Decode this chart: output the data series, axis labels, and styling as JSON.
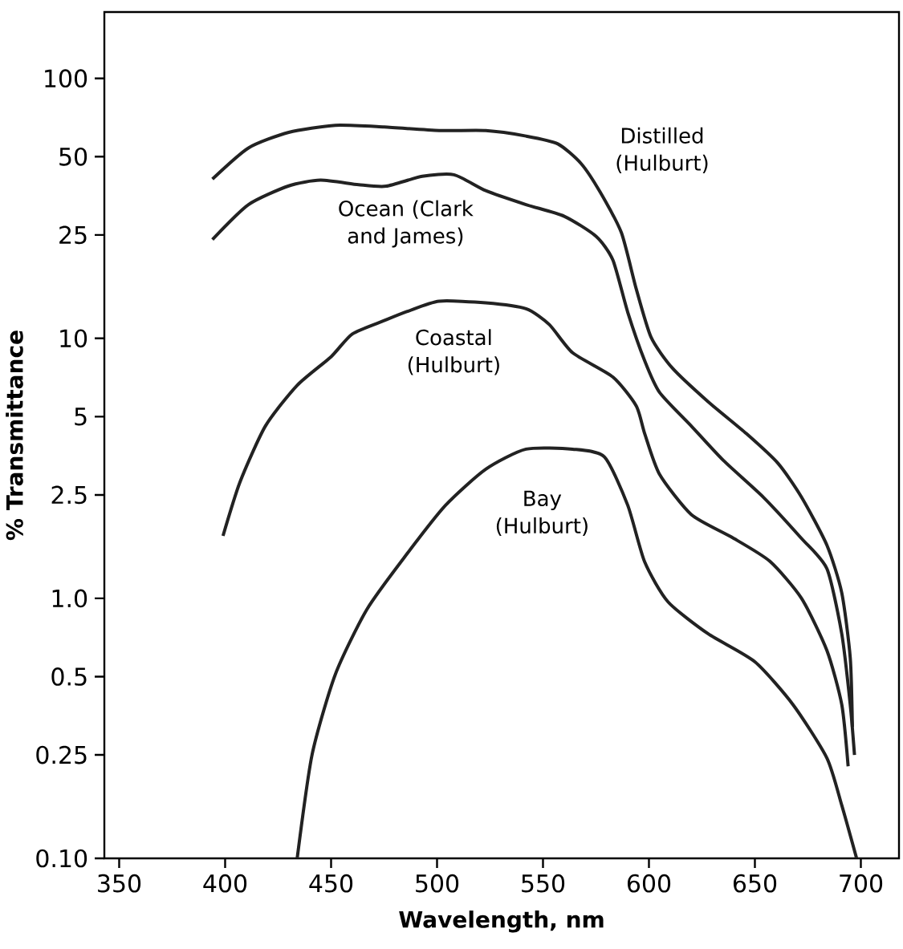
{
  "chart_data": {
    "type": "line",
    "xlabel": "Wavelength, nm",
    "ylabel": "% Transmittance",
    "log": "y",
    "grid": false,
    "marker": "none",
    "line_style": "solid",
    "xlim": [
      343,
      718
    ],
    "ylim": [
      0.1,
      180
    ],
    "xticks": [
      350,
      400,
      450,
      500,
      550,
      600,
      650,
      700
    ],
    "yticks": [
      {
        "value": 0.1,
        "label": "0.10"
      },
      0.25,
      0.5,
      {
        "value": 1,
        "label": "1.0"
      },
      2.5,
      5,
      10,
      25,
      50,
      100
    ],
    "series": [
      {
        "name": "Distilled (Hulburt)",
        "color": "#222222",
        "x": [
          394,
          411,
          430,
          452,
          475,
          501,
          523,
          542,
          557,
          568,
          577,
          587,
          594,
          601,
          611,
          628,
          646,
          661,
          672,
          684,
          691,
          695,
          696
        ],
        "values": [
          41,
          54,
          62,
          66,
          65,
          63,
          63,
          60,
          56,
          47,
          36.5,
          25.5,
          15.5,
          10.1,
          7.7,
          5.7,
          4.3,
          3.3,
          2.45,
          1.6,
          1.05,
          0.59,
          0.32
        ]
      },
      {
        "name": "Ocean (Clark and James)",
        "color": "#222222",
        "x": [
          394,
          411,
          430,
          445,
          463,
          476,
          493,
          508,
          523,
          542,
          560,
          575,
          583,
          590,
          598,
          605,
          620,
          635,
          654,
          672,
          684,
          691,
          695,
          697
        ],
        "values": [
          24,
          32.7,
          38.6,
          40.6,
          39,
          38.5,
          42,
          42.6,
          37,
          32.7,
          29.5,
          24.7,
          20,
          12.6,
          8.2,
          6.2,
          4.6,
          3.4,
          2.45,
          1.7,
          1.3,
          0.73,
          0.39,
          0.25
        ]
      },
      {
        "name": "Coastal (Hulburt)",
        "color": "#222222",
        "x": [
          399,
          407,
          419,
          434,
          450,
          460,
          475,
          486,
          501,
          523,
          542,
          553,
          564,
          583,
          594,
          598,
          605,
          620,
          639,
          657,
          672,
          684,
          691,
          694
        ],
        "values": [
          1.74,
          2.8,
          4.6,
          6.6,
          8.5,
          10.4,
          11.7,
          12.7,
          13.9,
          13.7,
          13,
          11.3,
          8.8,
          7.1,
          5.5,
          4.3,
          3.0,
          2.1,
          1.72,
          1.39,
          1.0,
          0.63,
          0.39,
          0.226
        ]
      },
      {
        "name": "Bay (Hulburt)",
        "color": "#222222",
        "x": [
          434,
          441,
          452,
          467,
          486,
          504,
          523,
          542,
          564,
          579,
          590,
          598,
          609,
          628,
          650,
          668,
          684,
          691,
          698
        ],
        "values": [
          0.1,
          0.25,
          0.51,
          0.91,
          1.49,
          2.28,
          3.14,
          3.75,
          3.75,
          3.5,
          2.28,
          1.38,
          0.97,
          0.73,
          0.57,
          0.39,
          0.243,
          0.16,
          0.1
        ]
      }
    ]
  }
}
